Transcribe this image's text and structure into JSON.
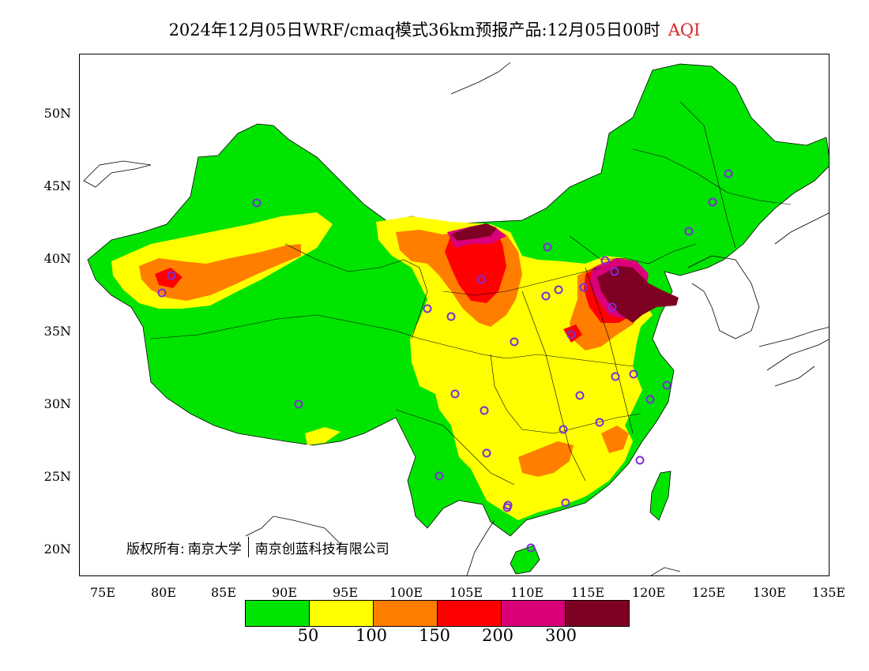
{
  "title": "2024年12月05日WRF/cmaq模式36km预报产品:12月05日00时",
  "title_variable": "AQI",
  "copyright": {
    "owner_label": "版权所有:",
    "org1": "南京大学",
    "org2": "南京创蓝科技有限公司"
  },
  "y_labels": [
    "50N",
    "45N",
    "40N",
    "35N",
    "30N",
    "25N",
    "20N"
  ],
  "x_labels": [
    "75E",
    "80E",
    "85E",
    "90E",
    "95E",
    "100E",
    "105E",
    "110E",
    "115E",
    "120E",
    "125E",
    "130E",
    "135E"
  ],
  "colorbar": {
    "colors": [
      "#00e400",
      "#ffff00",
      "#ff7e00",
      "#ff0000",
      "#d9007a",
      "#7e0023"
    ],
    "tick_labels": [
      "50",
      "100",
      "150",
      "200",
      "300"
    ]
  },
  "colors": {
    "land_low": "#00e400",
    "moderate": "#ffff00",
    "usg": "#ff7e00",
    "unhealthy": "#ff0000",
    "very_unhealthy": "#d9007a",
    "hazardous": "#7e0023",
    "station_marker": "#7a2fd8",
    "title_accent": "#dd2222"
  }
}
